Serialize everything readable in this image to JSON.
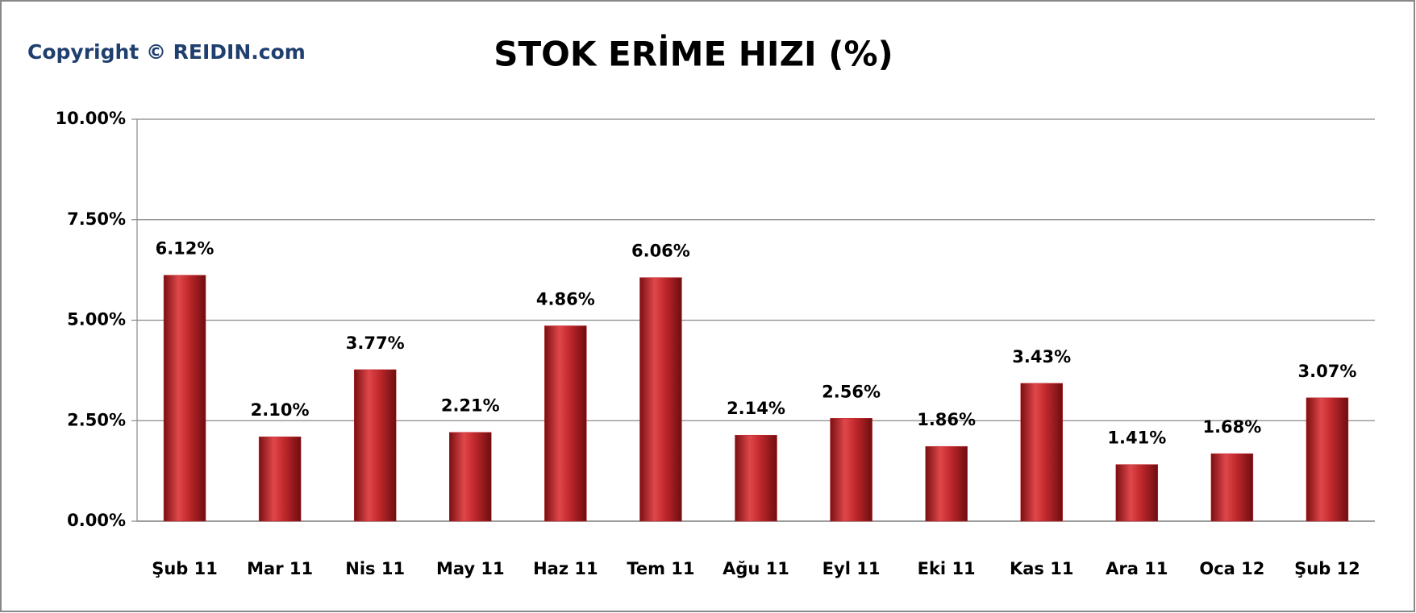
{
  "chart_data": {
    "type": "bar",
    "title": "STOK ERİME HIZI (%)",
    "annotation": "Copyright © REIDIN.com",
    "categories": [
      "Şub 11",
      "Mar 11",
      "Nis 11",
      "May 11",
      "Haz 11",
      "Tem 11",
      "Ağu 11",
      "Eyl 11",
      "Eki 11",
      "Kas 11",
      "Ara 11",
      "Oca 12",
      "Şub 12"
    ],
    "values": [
      6.12,
      2.1,
      3.77,
      2.21,
      4.86,
      6.06,
      2.14,
      2.56,
      1.86,
      3.43,
      1.41,
      1.68,
      3.07
    ],
    "value_labels": [
      "6.12%",
      "2.10%",
      "3.77%",
      "2.21%",
      "4.86%",
      "6.06%",
      "2.14%",
      "2.56%",
      "1.86%",
      "3.43%",
      "1.41%",
      "1.68%",
      "3.07%"
    ],
    "color": "#c0282c",
    "ylim": [
      0,
      10
    ],
    "yticks": [
      {
        "value": 0,
        "label": "0.00%"
      },
      {
        "value": 2.5,
        "label": "2.50%"
      },
      {
        "value": 5,
        "label": "5.00%"
      },
      {
        "value": 7.5,
        "label": "7.50%"
      },
      {
        "value": 10,
        "label": "10.00%"
      }
    ],
    "grid": true
  }
}
